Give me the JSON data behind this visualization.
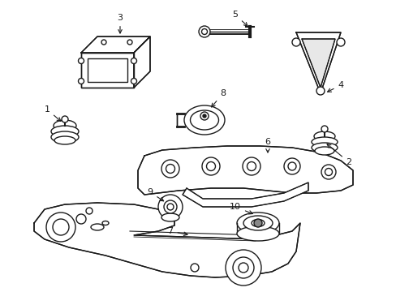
{
  "background_color": "#ffffff",
  "line_color": "#1a1a1a",
  "line_width": 1.0,
  "fig_width": 4.89,
  "fig_height": 3.6,
  "dpi": 100
}
